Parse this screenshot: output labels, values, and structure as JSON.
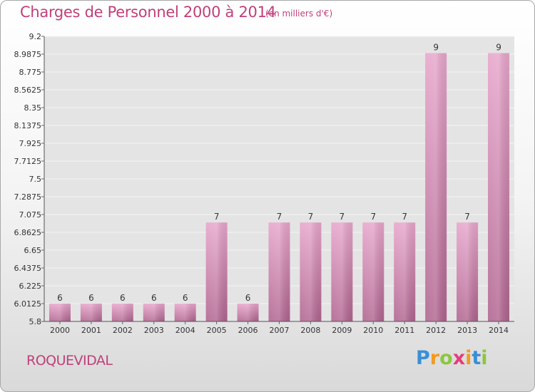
{
  "chart_data": {
    "type": "bar",
    "title": "Charges de Personnel 2000 à 2014",
    "subtitle": "(en milliers d'€)",
    "categories": [
      "2000",
      "2001",
      "2002",
      "2003",
      "2004",
      "2005",
      "2006",
      "2007",
      "2008",
      "2009",
      "2010",
      "2011",
      "2012",
      "2013",
      "2014"
    ],
    "values": [
      6,
      6,
      6,
      6,
      6,
      7,
      6,
      7,
      7,
      7,
      7,
      7,
      9,
      7,
      9
    ],
    "value_labels": [
      "6",
      "6",
      "6",
      "6",
      "6",
      "7",
      "6",
      "7",
      "7",
      "7",
      "7",
      "7",
      "9",
      "7",
      "9"
    ],
    "display_values": [
      6.0125,
      6.0125,
      6.0125,
      6.0125,
      6.0125,
      6.98,
      6.0125,
      6.98,
      6.98,
      6.98,
      6.98,
      6.98,
      9.0,
      6.98,
      9.0
    ],
    "ylim": [
      5.8,
      9.2
    ],
    "yticks": [
      "5.8",
      "6.0125",
      "6.225",
      "6.4375",
      "6.65",
      "6.8625",
      "7.075",
      "7.2875",
      "7.5",
      "7.7125",
      "7.925",
      "8.1375",
      "8.35",
      "8.5625",
      "8.775",
      "8.9875",
      "9.2"
    ],
    "grid": true,
    "bar_color": "#d98cb5",
    "xlabel": "",
    "ylabel": ""
  },
  "footer": {
    "town": "ROQUEVIDAL",
    "brand": {
      "letters": [
        "P",
        "r",
        "o",
        "x",
        "i",
        "t",
        "i"
      ],
      "colors": [
        "#3a8fd6",
        "#f39a1e",
        "#8dc63f",
        "#e63c7a",
        "#f39a1e",
        "#3a8fd6",
        "#8dc63f"
      ]
    }
  }
}
